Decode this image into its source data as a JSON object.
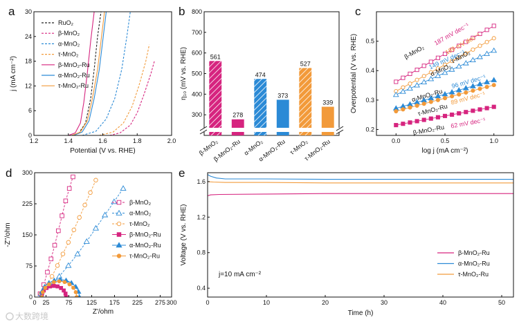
{
  "watermark": "大数跨境",
  "chart_data": [
    {
      "panel": "a",
      "type": "line",
      "xlabel": "Potential (V vs. RHE)",
      "ylabel": "j (mA cm⁻²)",
      "xlim": [
        1.2,
        2.0
      ],
      "ylim": [
        0,
        30
      ],
      "xticks": [
        "1.2",
        "1.4",
        "1.6",
        "1.8",
        "2.0"
      ],
      "yticks": [
        "0",
        "6",
        "12",
        "18",
        "24",
        "30"
      ],
      "legend_position": "top-right",
      "series": [
        {
          "name": "RuO₂",
          "color": "#222222",
          "dash": true,
          "x": [
            1.42,
            1.46,
            1.5,
            1.53,
            1.55,
            1.57,
            1.59
          ],
          "y": [
            0,
            0.5,
            3,
            9,
            16,
            24,
            30
          ]
        },
        {
          "name": "β-MnO₂",
          "color": "#d6247f",
          "dash": true,
          "x": [
            1.64,
            1.7,
            1.76,
            1.8,
            1.84,
            1.88,
            1.9
          ],
          "y": [
            0,
            0.6,
            2.5,
            5.5,
            10,
            15,
            18
          ]
        },
        {
          "name": "α-MnO₂",
          "color": "#2b8ad6",
          "dash": true,
          "x": [
            1.48,
            1.56,
            1.62,
            1.67,
            1.71,
            1.74,
            1.76
          ],
          "y": [
            0,
            1,
            4,
            9,
            16,
            24,
            30
          ]
        },
        {
          "name": "τ-MnO₂",
          "color": "#f29a3a",
          "dash": true,
          "x": [
            1.58,
            1.66,
            1.72,
            1.77,
            1.81,
            1.85,
            1.87
          ],
          "y": [
            0,
            0.8,
            3,
            7,
            12,
            18,
            22
          ]
        },
        {
          "name": "β-MnO₂-Ru",
          "color": "#d6247f",
          "dash": false,
          "x": [
            1.4,
            1.44,
            1.47,
            1.49,
            1.51,
            1.53,
            1.55
          ],
          "y": [
            0,
            0.6,
            3,
            8,
            15,
            23,
            30
          ]
        },
        {
          "name": "α-MnO₂-Ru",
          "color": "#2b8ad6",
          "dash": false,
          "x": [
            1.43,
            1.48,
            1.52,
            1.55,
            1.58,
            1.6,
            1.62
          ],
          "y": [
            0,
            0.8,
            3.5,
            9,
            16,
            23,
            30
          ]
        },
        {
          "name": "τ-MnO₂-Ru",
          "color": "#f29a3a",
          "dash": false,
          "x": [
            1.42,
            1.47,
            1.51,
            1.54,
            1.57,
            1.59,
            1.61
          ],
          "y": [
            0,
            0.8,
            3.5,
            9,
            16,
            23,
            30
          ]
        }
      ]
    },
    {
      "panel": "b",
      "type": "bar",
      "ylabel": "η₁₀ (mV vs. RHE)",
      "ylim": [
        200,
        800
      ],
      "axis_break": true,
      "yticks": [
        "300",
        "400",
        "500",
        "600",
        "700",
        "800"
      ],
      "categories": [
        "β-MnO₂",
        "β-MnO₂-Ru",
        "α-MnO₂",
        "α-MnO₂-Ru",
        "τ-MnO₂",
        "τ-MnO₂-Ru"
      ],
      "values": [
        561,
        278,
        474,
        373,
        527,
        339
      ],
      "value_labels": [
        "561",
        "278",
        "474",
        "373",
        "527",
        "339"
      ],
      "colors": [
        "#d6247f",
        "#d6247f",
        "#2b8ad6",
        "#2b8ad6",
        "#f29a3a",
        "#f29a3a"
      ],
      "hatched": [
        true,
        false,
        true,
        false,
        true,
        false
      ]
    },
    {
      "panel": "c",
      "type": "scatter",
      "xlabel": "log j (mA cm⁻²)",
      "ylabel": "Overpotential (V vs. RHE)",
      "xlim": [
        -0.2,
        1.2
      ],
      "ylim": [
        0.18,
        0.6
      ],
      "xticks": [
        "0.0",
        "0.5",
        "1.0"
      ],
      "yticks": [
        "0.2",
        "0.3",
        "0.4",
        "0.5"
      ],
      "series": [
        {
          "name": "β-MnO₂",
          "color": "#d6247f",
          "marker": "square-open",
          "x0": 0.0,
          "x1": 1.0,
          "y0": 0.362,
          "y1": 0.552,
          "tafel": "187 mV dec⁻¹"
        },
        {
          "name": "τ-MnO₂",
          "color": "#f29a3a",
          "marker": "circle-open",
          "x0": 0.0,
          "x1": 1.0,
          "y0": 0.33,
          "y1": 0.51,
          "tafel": "189 mV dec⁻¹"
        },
        {
          "name": "α-MnO₂",
          "color": "#2b8ad6",
          "marker": "triangle-open",
          "x0": 0.0,
          "x1": 1.0,
          "y0": 0.318,
          "y1": 0.468,
          "tafel": "149 mV dec⁻¹"
        },
        {
          "name": "α-MnO₂-Ru",
          "color": "#2b8ad6",
          "marker": "triangle-filled",
          "x0": 0.0,
          "x1": 1.0,
          "y0": 0.272,
          "y1": 0.368,
          "tafel": "96 mV dec⁻¹"
        },
        {
          "name": "τ-MnO₂-Ru",
          "color": "#f29a3a",
          "marker": "circle-filled",
          "x0": 0.0,
          "x1": 1.0,
          "y0": 0.262,
          "y1": 0.351,
          "tafel": "89 mV dec⁻¹"
        },
        {
          "name": "β-MnO₂-Ru",
          "color": "#d6247f",
          "marker": "square-filled",
          "x0": 0.0,
          "x1": 1.0,
          "y0": 0.215,
          "y1": 0.277,
          "tafel": "62 mV dec⁻¹"
        }
      ]
    },
    {
      "panel": "d",
      "type": "scatter",
      "xlabel": "Z'/ohm",
      "ylabel": "-Z''/ohm",
      "xlim": [
        0,
        300
      ],
      "ylim": [
        0,
        300
      ],
      "xticks": [
        "0",
        "25",
        "75",
        "125",
        "175",
        "225",
        "275",
        "300"
      ],
      "yticks": [
        "0",
        "75",
        "150",
        "225",
        "300"
      ],
      "legend_position": "right",
      "series": [
        {
          "name": "β-MnO₂",
          "color": "#d6247f",
          "marker": "square-open",
          "kind": "line",
          "x": [
            12,
            20,
            28,
            36,
            44,
            52,
            60,
            68,
            76,
            84
          ],
          "y": [
            8,
            30,
            60,
            92,
            125,
            160,
            196,
            232,
            262,
            290
          ]
        },
        {
          "name": "α-MnO₂",
          "color": "#2b8ad6",
          "marker": "triangle-open",
          "kind": "line",
          "x": [
            14,
            34,
            54,
            74,
            94,
            114,
            134,
            154,
            174,
            194
          ],
          "y": [
            8,
            28,
            50,
            76,
            104,
            134,
            166,
            198,
            230,
            262
          ]
        },
        {
          "name": "τ-MnO₂",
          "color": "#f29a3a",
          "marker": "circle-open",
          "kind": "line",
          "x": [
            14,
            26,
            38,
            50,
            62,
            74,
            86,
            98,
            110,
            122,
            134
          ],
          "y": [
            8,
            26,
            50,
            76,
            104,
            132,
            162,
            192,
            222,
            252,
            282
          ]
        },
        {
          "name": "β-MnO₂-Ru",
          "color": "#d6247f",
          "marker": "square-filled",
          "kind": "arc",
          "c": 42,
          "r": 27
        },
        {
          "name": "α-MnO₂-Ru",
          "color": "#2b8ad6",
          "marker": "triangle-filled",
          "kind": "arc",
          "c": 56,
          "r": 42
        },
        {
          "name": "τ-MnO₂-Ru",
          "color": "#f29a3a",
          "marker": "circle-filled",
          "kind": "arc",
          "c": 54,
          "r": 38
        }
      ]
    },
    {
      "panel": "e",
      "type": "line",
      "xlabel": "Time (h)",
      "ylabel": "Voltage (V vs. RHE)",
      "xlim": [
        0,
        52
      ],
      "ylim": [
        0.3,
        1.7
      ],
      "xticks": [
        "0",
        "10",
        "20",
        "30",
        "40",
        "50"
      ],
      "yticks": [
        "0.4",
        "0.8",
        "1.2",
        "1.6"
      ],
      "annotation": "j=10 mA cm⁻²",
      "legend_position": "bottom-right",
      "series": [
        {
          "name": "β-MnO₂-Ru",
          "color": "#d6247f",
          "x": [
            0,
            0.5,
            2,
            10,
            20,
            30,
            40,
            52
          ],
          "y": [
            1.44,
            1.45,
            1.455,
            1.46,
            1.465,
            1.465,
            1.465,
            1.465
          ]
        },
        {
          "name": "α-MnO₂-Ru",
          "color": "#2b8ad6",
          "x": [
            0,
            0.5,
            1.5,
            3,
            10,
            20,
            30,
            40,
            52
          ],
          "y": [
            1.68,
            1.66,
            1.64,
            1.63,
            1.63,
            1.625,
            1.625,
            1.625,
            1.625
          ]
        },
        {
          "name": "τ-MnO₂-Ru",
          "color": "#f29a3a",
          "x": [
            0,
            1,
            3,
            10,
            20,
            30,
            40,
            52
          ],
          "y": [
            1.6,
            1.595,
            1.59,
            1.59,
            1.585,
            1.585,
            1.585,
            1.585
          ]
        }
      ]
    }
  ]
}
